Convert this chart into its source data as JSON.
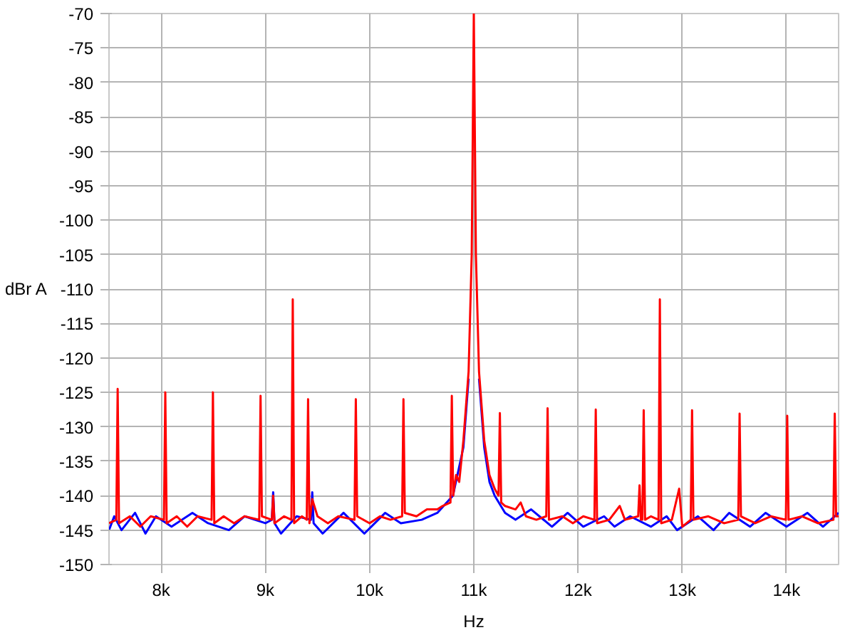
{
  "chart_data": {
    "type": "line",
    "xlabel": "Hz",
    "ylabel": "dBr A",
    "xlim": [
      7500,
      14500
    ],
    "ylim": [
      -150,
      -70
    ],
    "xticks": [
      {
        "value": 8000,
        "label": "8k"
      },
      {
        "value": 9000,
        "label": "9k"
      },
      {
        "value": 10000,
        "label": "10k"
      },
      {
        "value": 11000,
        "label": "11k"
      },
      {
        "value": 12000,
        "label": "12k"
      },
      {
        "value": 13000,
        "label": "13k"
      },
      {
        "value": 14000,
        "label": "14k"
      }
    ],
    "yticks": [
      -150,
      -145,
      -140,
      -135,
      -130,
      -125,
      -120,
      -115,
      -110,
      -105,
      -100,
      -95,
      -90,
      -85,
      -80,
      -75,
      -70
    ],
    "grid": true,
    "marker": "none",
    "line_style": "solid",
    "series": [
      {
        "color": "#0000ff",
        "x": [
          7500,
          7550,
          7620,
          7750,
          7850,
          7950,
          8100,
          8300,
          8450,
          8650,
          8800,
          9000,
          9062,
          9075,
          9088,
          9150,
          9300,
          9437,
          9450,
          9463,
          9550,
          9750,
          9950,
          10150,
          10300,
          10500,
          10650,
          10800,
          10900,
          10950,
          10980,
          11000,
          11020,
          11050,
          11100,
          11150,
          11200,
          11300,
          11400,
          11550,
          11750,
          11900,
          12050,
          12250,
          12350,
          12500,
          12700,
          12850,
          12950,
          13150,
          13300,
          13450,
          13650,
          13800,
          14000,
          14200,
          14350,
          14500
        ],
        "values": [
          -145,
          -143,
          -145,
          -142.5,
          -145.5,
          -143,
          -144.5,
          -142.5,
          -144,
          -145,
          -143,
          -144,
          -143.5,
          -139.5,
          -144,
          -145.5,
          -143,
          -143.5,
          -139.5,
          -144,
          -145.5,
          -142.5,
          -145.5,
          -142.5,
          -144,
          -143.5,
          -142.5,
          -140,
          -133,
          -123,
          null,
          null,
          null,
          -123,
          -133,
          -138,
          -140,
          -142.5,
          -143.5,
          -142,
          -144.5,
          -142.5,
          -144.5,
          -143,
          -144.5,
          -143,
          -144.5,
          -143,
          -145,
          -143,
          -145,
          -142.5,
          -144.5,
          -142.5,
          -144.5,
          -142.5,
          -144.5,
          -142.5
        ]
      },
      {
        "color": "#ff0000",
        "x": [
          7500,
          7570,
          7583,
          7596,
          7700,
          7800,
          7900,
          8027,
          8040,
          8053,
          8150,
          8250,
          8350,
          8484,
          8497,
          8510,
          8600,
          8700,
          8800,
          8941,
          8954,
          8967,
          9062,
          9075,
          9088,
          9180,
          9250,
          9263,
          9276,
          9350,
          9397,
          9410,
          9423,
          9450,
          9500,
          9600,
          9700,
          9855,
          9868,
          9881,
          10000,
          10100,
          10200,
          10312,
          10325,
          10338,
          10450,
          10550,
          10650,
          10700,
          10776,
          10789,
          10802,
          10830,
          10860,
          10900,
          10950,
          10980,
          11000,
          11020,
          11050,
          11100,
          11150,
          11200,
          11237,
          11250,
          11263,
          11300,
          11400,
          11450,
          11500,
          11600,
          11695,
          11708,
          11721,
          11850,
          11950,
          12050,
          12157,
          12170,
          12183,
          12300,
          12400,
          12450,
          12577,
          12590,
          12603,
          12617,
          12630,
          12643,
          12700,
          12772,
          12785,
          12798,
          12900,
          12970,
          13000,
          13081,
          13094,
          13107,
          13250,
          13400,
          13537,
          13550,
          13563,
          13700,
          13850,
          13994,
          14007,
          14020,
          14150,
          14300,
          14450,
          14463,
          14476,
          14500
        ],
        "values": [
          -144,
          -143.5,
          -124.5,
          -144,
          -143,
          -144.5,
          -143,
          -143.5,
          -125,
          -144,
          -143,
          -144.5,
          -143,
          -143.5,
          -125,
          -144,
          -143,
          -144,
          -143,
          -143.5,
          -125.5,
          -143,
          -143.5,
          -140,
          -144,
          -143,
          -143.5,
          -111.5,
          -144,
          -143,
          -143.5,
          -126,
          -144,
          -140.5,
          -143,
          -144,
          -143,
          -143.5,
          -126,
          -143,
          -144,
          -143,
          -143.5,
          -143,
          -126,
          -142.5,
          -143,
          -142,
          -142,
          -141.5,
          -141,
          -125.5,
          -140,
          -137,
          -138,
          -132,
          -122,
          -105,
          -70,
          -105,
          -122,
          -132,
          -137,
          -139,
          -140,
          -128,
          -141,
          -141.5,
          -142,
          -141,
          -143,
          -143.5,
          -143,
          -127.3,
          -143.5,
          -143,
          -144,
          -143,
          -143.5,
          -127.5,
          -144,
          -143.5,
          -141.5,
          -143.5,
          -143,
          -138.5,
          -143.5,
          -143.5,
          -127.6,
          -143.5,
          -143,
          -143.5,
          -111.5,
          -144,
          -143.5,
          -139,
          -144.5,
          -143.5,
          -127.6,
          -143.5,
          -143,
          -144,
          -143.5,
          -128.1,
          -143,
          -144,
          -143,
          -143.5,
          -128.4,
          -143.5,
          -143,
          -144,
          -143.5,
          -128.1,
          -143,
          -143
        ]
      }
    ]
  }
}
